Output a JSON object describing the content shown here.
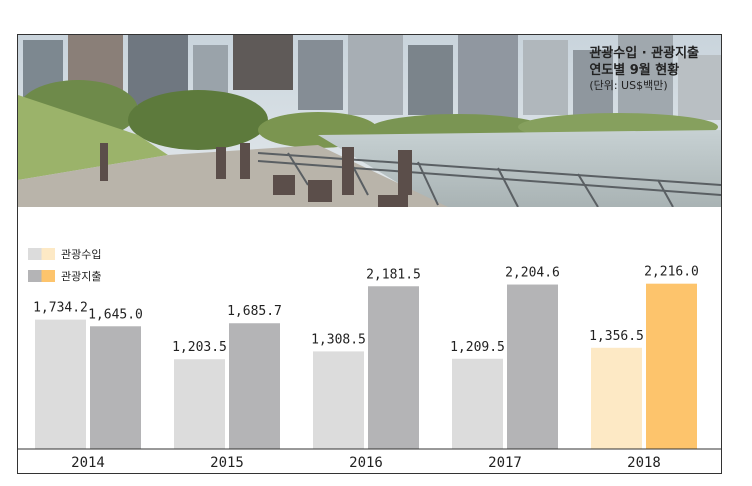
{
  "title": {
    "line1": "관광수입 · 관광지출",
    "line2": "연도별 9월 현황",
    "unit": "(단위: US$백만)"
  },
  "legend": {
    "income_label": "관광수입",
    "expense_label": "관광지출"
  },
  "colors": {
    "income": "#dcdcdc",
    "expense": "#b4b4b6",
    "income_highlight": "#fde9c5",
    "expense_highlight": "#fdc46c"
  },
  "chart_data": {
    "type": "bar",
    "categories": [
      "2014",
      "2015",
      "2016",
      "2017",
      "2018"
    ],
    "series": [
      {
        "name": "관광수입",
        "values": [
          1734.2,
          1203.5,
          1308.5,
          1209.5,
          1356.5
        ],
        "labels": [
          "1,734.2",
          "1,203.5",
          "1,308.5",
          "1,209.5",
          "1,356.5"
        ]
      },
      {
        "name": "관광지출",
        "values": [
          1645.0,
          1685.7,
          2181.5,
          2204.6,
          2216.0
        ],
        "labels": [
          "1,645.0",
          "1,685.7",
          "2,181.5",
          "2,204.6",
          "2,216.0"
        ]
      }
    ],
    "highlight_category": "2018",
    "title": "관광수입 · 관광지출 연도별 9월 현황 (단위: US$백만)",
    "xlabel": "",
    "ylabel": "",
    "grid": false,
    "legend_position": "top-left"
  }
}
